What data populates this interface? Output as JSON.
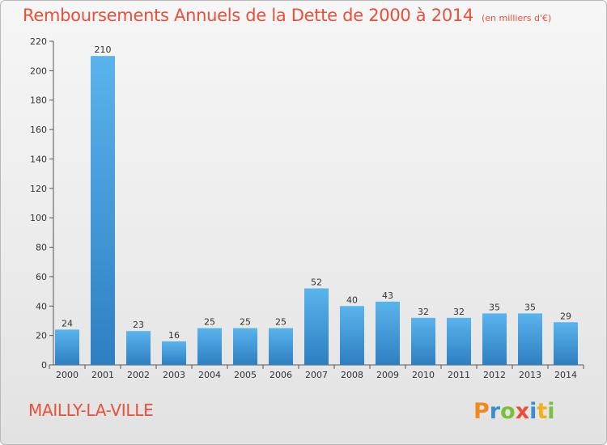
{
  "header": {
    "title": "Remboursements Annuels de la Dette de 2000 à 2014",
    "unit": "(en milliers d'€)"
  },
  "footer": {
    "commune": "MAILLY-LA-VILLE",
    "logo_text": "Proxiti"
  },
  "colors": {
    "title": "#e8503a",
    "bar_top": "#5ab4ec",
    "bar_bottom": "#2e7fc2"
  },
  "chart_data": {
    "type": "bar",
    "title": "Remboursements Annuels de la Dette de 2000 à 2014",
    "xlabel": "",
    "ylabel": "",
    "categories": [
      "2000",
      "2001",
      "2002",
      "2003",
      "2004",
      "2005",
      "2006",
      "2007",
      "2008",
      "2009",
      "2010",
      "2011",
      "2012",
      "2013",
      "2014"
    ],
    "values": [
      24,
      210,
      23,
      16,
      25,
      25,
      25,
      52,
      40,
      43,
      32,
      32,
      35,
      35,
      29
    ],
    "ylim": [
      0,
      220
    ],
    "yticks": [
      0,
      20,
      40,
      60,
      80,
      100,
      120,
      140,
      160,
      180,
      200,
      220
    ],
    "grid": false,
    "data_labels": true
  }
}
